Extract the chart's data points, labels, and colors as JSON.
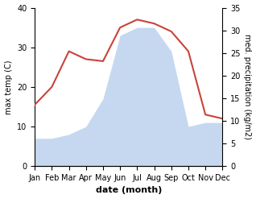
{
  "months": [
    "Jan",
    "Feb",
    "Mar",
    "Apr",
    "May",
    "Jun",
    "Jul",
    "Aug",
    "Sep",
    "Oct",
    "Nov",
    "Dec"
  ],
  "x": [
    1,
    2,
    3,
    4,
    5,
    6,
    7,
    8,
    9,
    10,
    11,
    12
  ],
  "temp": [
    15.5,
    20,
    29,
    27,
    26.5,
    35,
    37,
    36,
    34,
    29,
    13,
    12
  ],
  "precip": [
    7,
    7,
    8,
    10,
    17,
    33,
    35,
    35,
    29,
    10,
    11,
    11
  ],
  "temp_color": "#c9433a",
  "precip_fill_color": "#c5d8f0",
  "temp_ylim": [
    0,
    40
  ],
  "precip_ylim": [
    0,
    35
  ],
  "temp_yticks": [
    0,
    10,
    20,
    30,
    40
  ],
  "precip_yticks": [
    0,
    5,
    10,
    15,
    20,
    25,
    30,
    35
  ],
  "xlabel": "date (month)",
  "ylabel_left": "max temp (C)",
  "ylabel_right": "med. precipitation (kg/m2)",
  "figsize": [
    3.18,
    2.47
  ],
  "dpi": 100
}
